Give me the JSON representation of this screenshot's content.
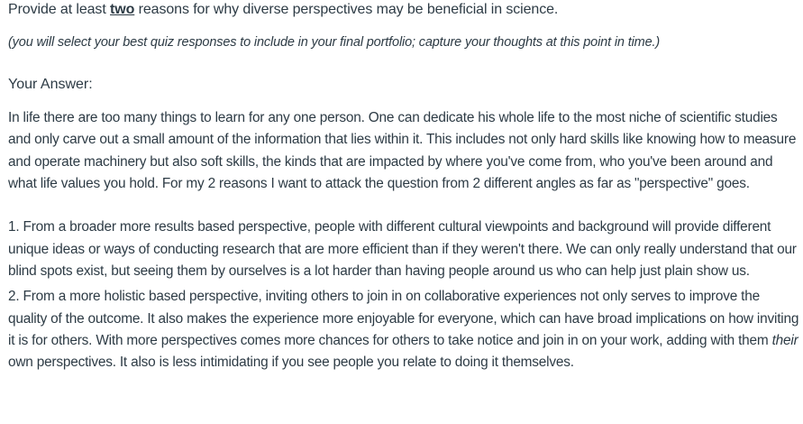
{
  "question": {
    "prefix": "Provide at least ",
    "emphasis": "two",
    "suffix": " reasons for why diverse perspectives may be beneficial in science.",
    "note": "(you will select your best quiz responses to include in your final portfolio; capture your thoughts at this point in time.)"
  },
  "answer": {
    "label": "Your Answer:",
    "paragraph_1": "In life there are too many things to learn for any one person. One can dedicate his whole life to the most niche of scientific studies and only carve out a small amount of the information that lies within it. This includes not only hard skills like knowing how to measure and operate machinery but also soft skills, the kinds that are impacted by where you've come from, who you've been around and what life values you hold. For my 2 reasons I want to attack the question from 2 different angles as far as \"perspective\" goes.",
    "paragraph_2": "1. From a broader more results based perspective, people with different cultural viewpoints and background will provide different unique ideas or ways of conducting research that are more efficient than if they weren't there. We can only really understand that our blind spots exist, but seeing them by ourselves is a lot harder than having people around us who can help just plain show us.",
    "paragraph_3_before": "2. From a more holistic based perspective, inviting others to join in on collaborative experiences not only serves to improve the quality of the outcome. It also makes the experience more enjoyable for everyone, which can have broad implications on how inviting it is for others. With more perspectives comes more chances for others to take notice and join in on your work, adding with them ",
    "paragraph_3_emphasis": "their",
    "paragraph_3_after": " own perspectives. It also is less intimidating if you see people you relate to doing it themselves."
  }
}
